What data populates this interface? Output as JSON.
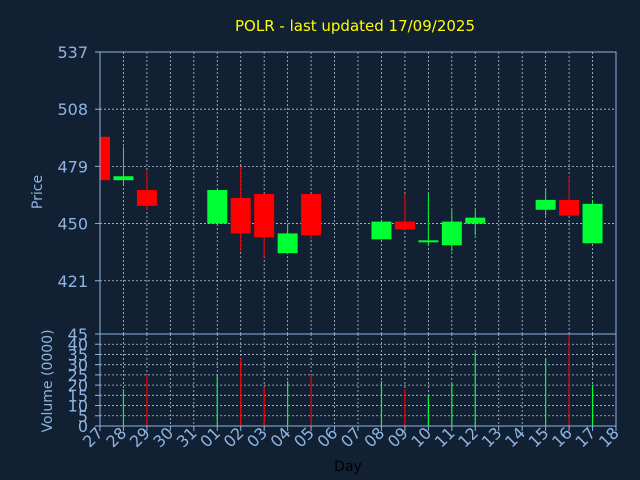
{
  "colors": {
    "background": "#112033",
    "axis": "#8fb4e0",
    "grid": "#b8c4d4",
    "title": "#ffff00",
    "up": "#00ff33",
    "down": "#ff0000"
  },
  "chart_data": {
    "type": "candlestick",
    "title": "POLR - last updated 17/09/2025",
    "xlabel": "Day",
    "ylabel": "Price",
    "volume_label": "Volume (0000)",
    "grid": true,
    "x_ticks": [
      "27",
      "28",
      "29",
      "30",
      "31",
      "01",
      "02",
      "03",
      "04",
      "05",
      "06",
      "07",
      "08",
      "09",
      "10",
      "11",
      "12",
      "13",
      "14",
      "15",
      "16",
      "17",
      "18"
    ],
    "price_ticks": [
      421,
      450,
      479,
      508,
      537
    ],
    "price_ylim": [
      394,
      537
    ],
    "volume_ticks": [
      0,
      5,
      10,
      15,
      20,
      25,
      30,
      35,
      40,
      45
    ],
    "volume_ylim": [
      0,
      45
    ],
    "candles": [
      {
        "day": "27",
        "open": 494,
        "high": 494,
        "low": 472,
        "close": 472,
        "volume": 0
      },
      {
        "day": "28",
        "open": 472,
        "high": 489,
        "low": 470,
        "close": 474,
        "volume": 18
      },
      {
        "day": "29",
        "open": 467,
        "high": 477,
        "low": 457,
        "close": 459,
        "volume": 25
      },
      {
        "day": "01",
        "open": 450,
        "high": 467,
        "low": 450,
        "close": 467,
        "volume": 25
      },
      {
        "day": "02",
        "open": 463,
        "high": 479,
        "low": 436,
        "close": 445,
        "volume": 33
      },
      {
        "day": "03",
        "open": 465,
        "high": 465,
        "low": 433,
        "close": 443,
        "volume": 19
      },
      {
        "day": "04",
        "open": 435,
        "high": 450,
        "low": 435,
        "close": 445,
        "volume": 22
      },
      {
        "day": "05",
        "open": 465,
        "high": 465,
        "low": 442,
        "close": 444,
        "volume": 25
      },
      {
        "day": "08",
        "open": 442,
        "high": 452,
        "low": 442,
        "close": 451,
        "volume": 22
      },
      {
        "day": "09",
        "open": 451,
        "high": 465,
        "low": 447,
        "close": 447,
        "volume": 18
      },
      {
        "day": "10",
        "open": 440,
        "high": 465,
        "low": 439,
        "close": 441,
        "volume": 15
      },
      {
        "day": "11",
        "open": 439,
        "high": 457,
        "low": 436,
        "close": 451,
        "volume": 21
      },
      {
        "day": "12",
        "open": 450,
        "high": 457,
        "low": 444,
        "close": 453,
        "volume": 36
      },
      {
        "day": "15",
        "open": 457,
        "high": 468,
        "low": 454,
        "close": 462,
        "volume": 33
      },
      {
        "day": "16",
        "open": 462,
        "high": 474,
        "low": 454,
        "close": 454,
        "volume": 45
      },
      {
        "day": "17",
        "open": 440,
        "high": 462,
        "low": 440,
        "close": 460,
        "volume": 20
      }
    ]
  }
}
